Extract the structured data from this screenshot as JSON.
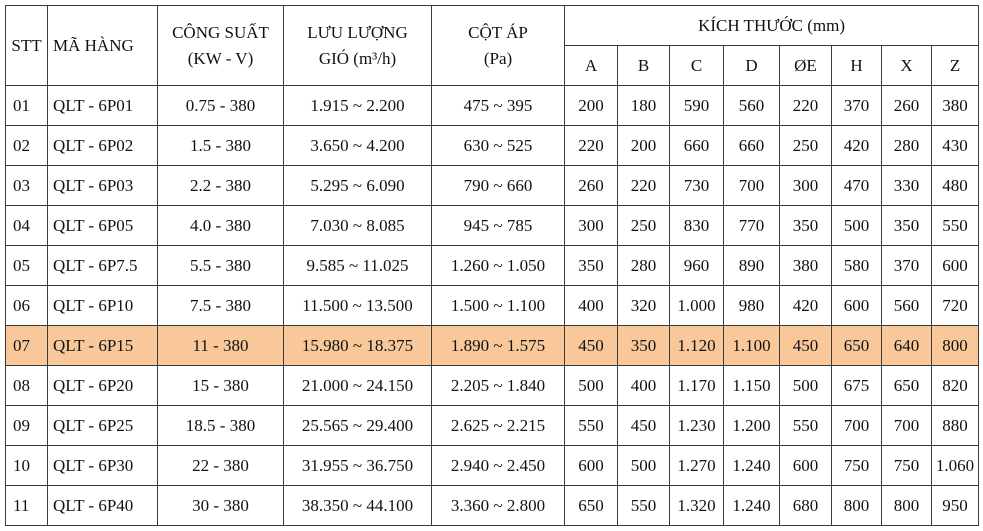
{
  "header": {
    "stt": "STT",
    "ma_hang": "MÃ HÀNG",
    "cong_suat_l1": "CÔNG SUẤT",
    "cong_suat_l2": "(KW - V)",
    "luu_luong_l1": "LƯU LƯỢNG",
    "luu_luong_l2": "GIÓ (m³/h)",
    "cot_ap_l1": "CỘT ÁP",
    "cot_ap_l2": "(Pa)",
    "kich_thuoc": "KÍCH THƯỚC (mm)",
    "dims": [
      "A",
      "B",
      "C",
      "D",
      "ØE",
      "H",
      "X",
      "Z"
    ]
  },
  "highlight_color": "#f8c89a",
  "rows": [
    {
      "stt": "01",
      "ma": "QLT - 6P01",
      "cs": "0.75 - 380",
      "ll": "1.915 ~ 2.200",
      "ca": "475 ~ 395",
      "d": [
        "200",
        "180",
        "590",
        "560",
        "220",
        "370",
        "260",
        "380"
      ]
    },
    {
      "stt": "02",
      "ma": "QLT - 6P02",
      "cs": "1.5 - 380",
      "ll": "3.650 ~ 4.200",
      "ca": "630 ~ 525",
      "d": [
        "220",
        "200",
        "660",
        "660",
        "250",
        "420",
        "280",
        "430"
      ]
    },
    {
      "stt": "03",
      "ma": "QLT - 6P03",
      "cs": "2.2 - 380",
      "ll": "5.295 ~ 6.090",
      "ca": "790 ~ 660",
      "d": [
        "260",
        "220",
        "730",
        "700",
        "300",
        "470",
        "330",
        "480"
      ]
    },
    {
      "stt": "04",
      "ma": "QLT - 6P05",
      "cs": "4.0  - 380",
      "ll": "7.030 ~ 8.085",
      "ca": "945 ~ 785",
      "d": [
        "300",
        "250",
        "830",
        "770",
        "350",
        "500",
        "350",
        "550"
      ]
    },
    {
      "stt": "05",
      "ma": "QLT - 6P7.5",
      "cs": "5.5 - 380",
      "ll": "9.585 ~ 11.025",
      "ca": "1.260 ~ 1.050",
      "d": [
        "350",
        "280",
        "960",
        "890",
        "380",
        "580",
        "370",
        "600"
      ]
    },
    {
      "stt": "06",
      "ma": "QLT - 6P10",
      "cs": "7.5 - 380",
      "ll": "11.500 ~ 13.500",
      "ca": "1.500 ~ 1.100",
      "d": [
        "400",
        "320",
        "1.000",
        "980",
        "420",
        "600",
        "560",
        "720"
      ]
    },
    {
      "stt": "07",
      "ma": "QLT - 6P15",
      "cs": "11 - 380",
      "ll": "15.980 ~ 18.375",
      "ca": "1.890 ~ 1.575",
      "d": [
        "450",
        "350",
        "1.120",
        "1.100",
        "450",
        "650",
        "640",
        "800"
      ],
      "highlight": true
    },
    {
      "stt": "08",
      "ma": "QLT - 6P20",
      "cs": "15 - 380",
      "ll": "21.000 ~ 24.150",
      "ca": "2.205 ~ 1.840",
      "d": [
        "500",
        "400",
        "1.170",
        "1.150",
        "500",
        "675",
        "650",
        "820"
      ]
    },
    {
      "stt": "09",
      "ma": "QLT - 6P25",
      "cs": "18.5 - 380",
      "ll": "25.565 ~ 29.400",
      "ca": "2.625 ~ 2.215",
      "d": [
        "550",
        "450",
        "1.230",
        "1.200",
        "550",
        "700",
        "700",
        "880"
      ]
    },
    {
      "stt": "10",
      "ma": "QLT - 6P30",
      "cs": "22 - 380",
      "ll": "31.955 ~ 36.750",
      "ca": "2.940 ~ 2.450",
      "d": [
        "600",
        "500",
        "1.270",
        "1.240",
        "600",
        "750",
        "750",
        "1.060"
      ]
    },
    {
      "stt": "11",
      "ma": "QLT - 6P40",
      "cs": "30 - 380",
      "ll": "38.350 ~ 44.100",
      "ca": "3.360 ~ 2.800",
      "d": [
        "650",
        "550",
        "1.320",
        "1.240",
        "680",
        "800",
        "800",
        "950"
      ]
    }
  ]
}
